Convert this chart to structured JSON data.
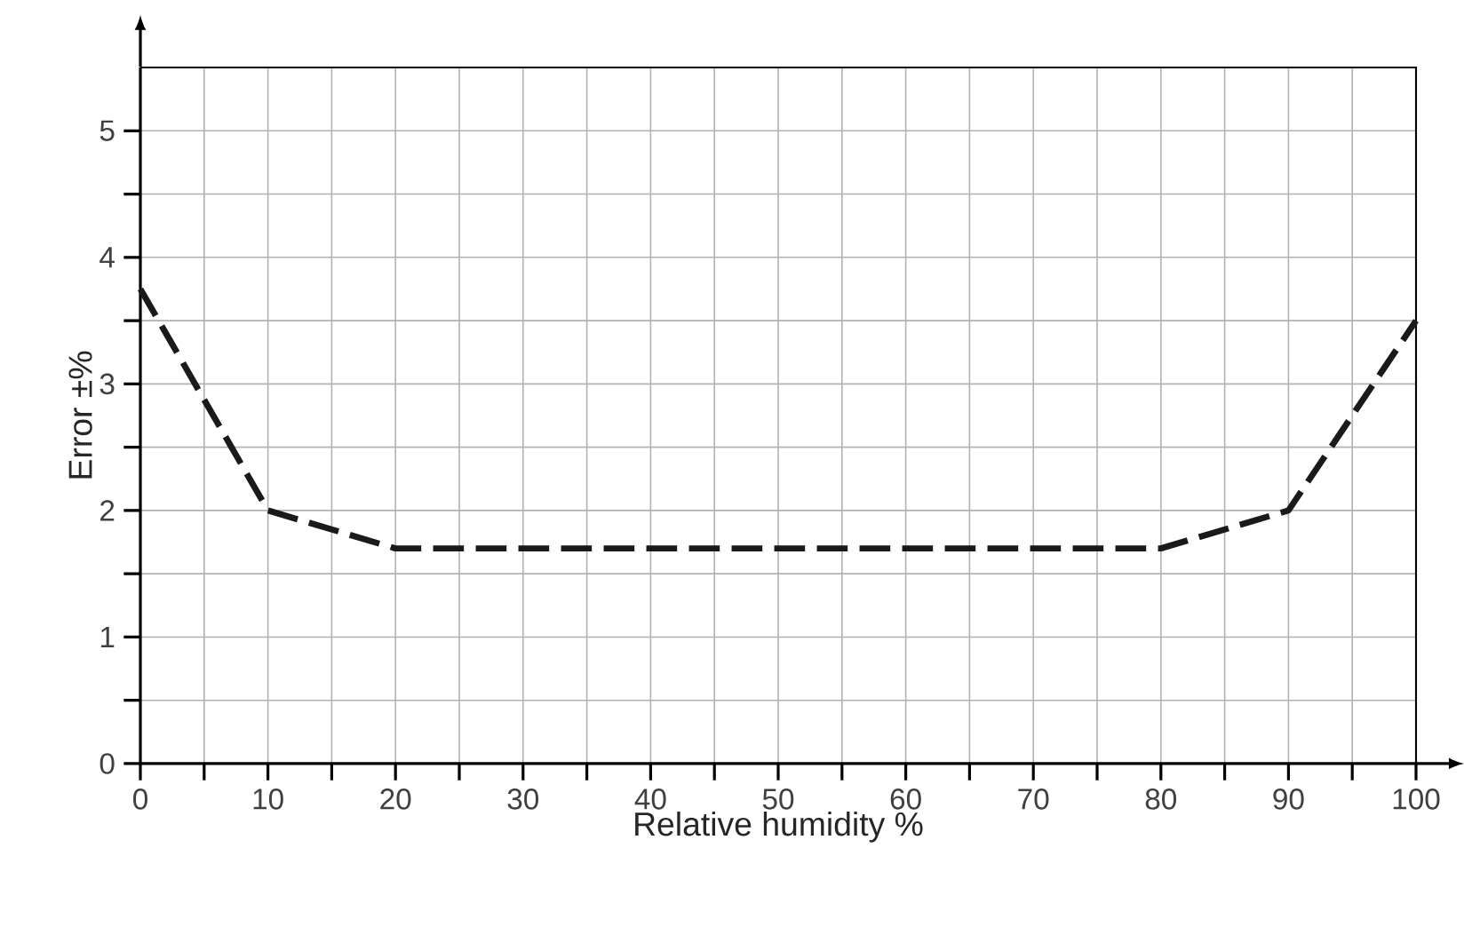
{
  "chart_data": {
    "type": "line",
    "xlabel": "Relative humidity %",
    "ylabel": "Error ±%",
    "x": [
      0,
      10,
      20,
      80,
      90,
      100
    ],
    "series": [
      {
        "color": "#1a1a1a",
        "values": [
          3.75,
          2.0,
          1.7,
          1.7,
          2.0,
          3.5
        ]
      }
    ],
    "xlim": [
      0,
      100
    ],
    "ylim": [
      0,
      5.5
    ],
    "xticks": [
      0,
      {
        "value": 5,
        "label": null
      },
      10,
      {
        "value": 15,
        "label": null
      },
      20,
      {
        "value": 25,
        "label": null
      },
      30,
      {
        "value": 35,
        "label": null
      },
      40,
      {
        "value": 45,
        "label": null
      },
      50,
      {
        "value": 55,
        "label": null
      },
      60,
      {
        "value": 65,
        "label": null
      },
      70,
      {
        "value": 75,
        "label": null
      },
      80,
      {
        "value": 85,
        "label": null
      },
      90,
      {
        "value": 95,
        "label": null
      },
      100
    ],
    "yticks": [
      0,
      {
        "value": 0.5,
        "label": null
      },
      1,
      {
        "value": 1.5,
        "label": null
      },
      2,
      {
        "value": 2.5,
        "label": null
      },
      3,
      {
        "value": 3.5,
        "label": null
      },
      4,
      {
        "value": 4.5,
        "label": null
      },
      5
    ],
    "grid": true,
    "line_style": "dashed",
    "marker": "none"
  }
}
